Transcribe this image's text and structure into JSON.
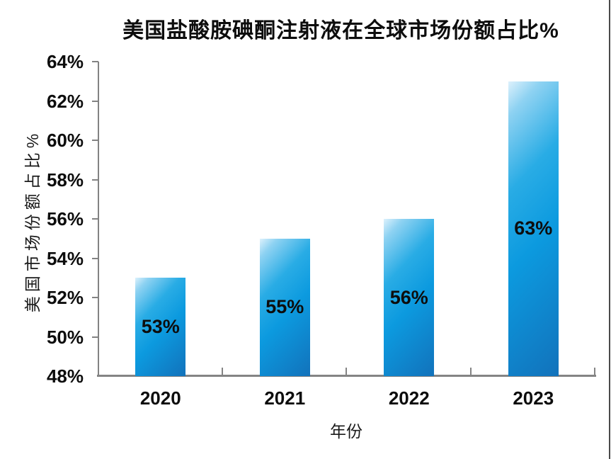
{
  "chart_data": {
    "type": "bar",
    "title": "美国盐酸胺碘酮注射液在全球市场份额占比%",
    "xlabel": "年份",
    "ylabel": "美国市场份额占比%",
    "categories": [
      "2020",
      "2021",
      "2022",
      "2023"
    ],
    "values": [
      53,
      55,
      56,
      63
    ],
    "value_labels": [
      "53%",
      "55%",
      "56%",
      "63%"
    ],
    "y_ticks": [
      "64%",
      "62%",
      "60%",
      "58%",
      "56%",
      "54%",
      "52%",
      "50%",
      "48%"
    ],
    "ylim": [
      48,
      64
    ],
    "y_tick_step": 2,
    "grid": false,
    "legend": false,
    "value_label_position": "inside-center",
    "colors": {
      "bar_highlight": "#ddf1fc",
      "bar_main": "#0c9adf",
      "bar_shadow": "#1272bb",
      "axis": "#828282",
      "text": "#0d0d0d"
    }
  }
}
